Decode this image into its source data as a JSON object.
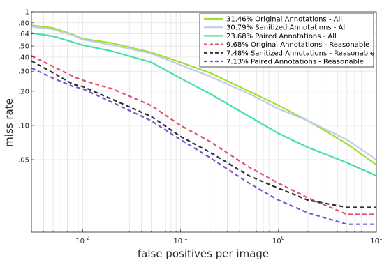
{
  "chart_data": {
    "type": "line",
    "xlabel": "false positives per image",
    "ylabel": "miss rate",
    "x_scale": "log",
    "y_scale": "log",
    "xlim": [
      0.003,
      10
    ],
    "ylim": [
      0.0115,
      1.0
    ],
    "x_ticks": [
      {
        "value": 0.01,
        "base": "10",
        "exp": "-2"
      },
      {
        "value": 0.1,
        "base": "10",
        "exp": "-1"
      },
      {
        "value": 1,
        "base": "10",
        "exp": "0"
      },
      {
        "value": 10,
        "base": "10",
        "exp": "1"
      }
    ],
    "y_ticks": [
      {
        "value": 0.05,
        "label": ".05"
      },
      {
        "value": 0.1,
        "label": ".10"
      },
      {
        "value": 0.2,
        "label": ".20"
      },
      {
        "value": 0.3,
        "label": ".30"
      },
      {
        "value": 0.4,
        "label": ".40"
      },
      {
        "value": 0.5,
        "label": ".50"
      },
      {
        "value": 0.64,
        "label": ".64"
      },
      {
        "value": 0.8,
        "label": ".80"
      },
      {
        "value": 1.0,
        "label": "1"
      }
    ],
    "grid": true,
    "legend_position": "top-right",
    "series": [
      {
        "name": "31.46% Original Annotations - All",
        "color": "#9be32f",
        "dash": "solid",
        "x": [
          0.003,
          0.005,
          0.008,
          0.01,
          0.02,
          0.05,
          0.1,
          0.2,
          0.5,
          1,
          2,
          5,
          10
        ],
        "y": [
          0.76,
          0.72,
          0.63,
          0.58,
          0.53,
          0.44,
          0.36,
          0.29,
          0.2,
          0.15,
          0.11,
          0.069,
          0.045
        ]
      },
      {
        "name": "30.79% Sanitized Annotations - All",
        "color": "#c6c9ef",
        "dash": "solid",
        "x": [
          0.003,
          0.005,
          0.008,
          0.01,
          0.02,
          0.05,
          0.1,
          0.2,
          0.5,
          1,
          2,
          5,
          10
        ],
        "y": [
          0.74,
          0.7,
          0.62,
          0.57,
          0.51,
          0.43,
          0.34,
          0.27,
          0.19,
          0.14,
          0.11,
          0.075,
          0.05
        ]
      },
      {
        "name": "23.68% Paired Annotations - All",
        "color": "#44e2a4",
        "dash": "solid",
        "x": [
          0.003,
          0.005,
          0.008,
          0.01,
          0.02,
          0.05,
          0.1,
          0.2,
          0.5,
          1,
          2,
          5,
          10
        ],
        "y": [
          0.65,
          0.61,
          0.54,
          0.51,
          0.45,
          0.36,
          0.26,
          0.19,
          0.12,
          0.085,
          0.064,
          0.047,
          0.036
        ]
      },
      {
        "name": "9.68% Original Annotations - Reasonable",
        "color": "#e0506a",
        "dash": "dashed",
        "x": [
          0.003,
          0.005,
          0.008,
          0.01,
          0.02,
          0.05,
          0.1,
          0.2,
          0.5,
          1,
          2,
          5,
          10
        ],
        "y": [
          0.41,
          0.33,
          0.27,
          0.25,
          0.21,
          0.15,
          0.1,
          0.072,
          0.043,
          0.031,
          0.023,
          0.0165,
          0.0165
        ]
      },
      {
        "name": "7.48% Sanitized Annotations - Reasonable",
        "color": "#303030",
        "dash": "dashed",
        "x": [
          0.003,
          0.005,
          0.008,
          0.01,
          0.02,
          0.05,
          0.1,
          0.2,
          0.5,
          1,
          2,
          5,
          10
        ],
        "y": [
          0.37,
          0.29,
          0.23,
          0.22,
          0.17,
          0.12,
          0.08,
          0.058,
          0.036,
          0.028,
          0.022,
          0.019,
          0.019
        ]
      },
      {
        "name": "7.13% Paired Annotations - Reasonable",
        "color": "#7a52d2",
        "dash": "dashed",
        "x": [
          0.003,
          0.005,
          0.008,
          0.01,
          0.02,
          0.05,
          0.1,
          0.2,
          0.5,
          1,
          2,
          5,
          10
        ],
        "y": [
          0.32,
          0.26,
          0.22,
          0.21,
          0.16,
          0.11,
          0.075,
          0.052,
          0.031,
          0.022,
          0.017,
          0.0135,
          0.0135
        ]
      }
    ]
  }
}
